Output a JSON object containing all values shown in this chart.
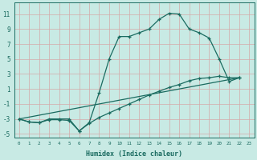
{
  "xlabel": "Humidex (Indice chaleur)",
  "xlim": [
    -0.5,
    23.5
  ],
  "ylim": [
    -5.5,
    12.5
  ],
  "xticks": [
    0,
    1,
    2,
    3,
    4,
    5,
    6,
    7,
    8,
    9,
    10,
    11,
    12,
    13,
    14,
    15,
    16,
    17,
    18,
    19,
    20,
    21,
    22,
    23
  ],
  "yticks": [
    -5,
    -3,
    -1,
    1,
    3,
    5,
    7,
    9,
    11
  ],
  "bg_color": "#c8eae4",
  "grid_color": "#b0d4cc",
  "line_color": "#1a6b60",
  "line1_x": [
    0,
    1,
    2,
    3,
    4,
    5,
    6,
    7,
    8,
    9,
    10,
    11,
    12,
    13,
    14,
    15,
    16,
    17,
    18,
    19,
    20,
    21,
    22
  ],
  "line1_y": [
    -3,
    -3.4,
    -3.5,
    -3,
    -3,
    -3,
    -4.6,
    -3.5,
    0.5,
    5,
    8.0,
    8.0,
    8.5,
    9,
    10.3,
    11.1,
    11.0,
    9.0,
    8.5,
    7.8,
    5.0,
    2.0,
    2.5
  ],
  "line2_x": [
    0,
    22
  ],
  "line2_y": [
    -3,
    2.5
  ],
  "line3_x": [
    0,
    1,
    2,
    3,
    4,
    5,
    6,
    7,
    8,
    9,
    10,
    11,
    12,
    13,
    14,
    15,
    16,
    17,
    18,
    19,
    20,
    21,
    22
  ],
  "line3_y": [
    -3,
    -3.4,
    -3.5,
    -3.1,
    -3.1,
    -3.2,
    -4.6,
    -3.6,
    -2.8,
    -2.2,
    -1.6,
    -1.0,
    -0.4,
    0.2,
    0.7,
    1.2,
    1.6,
    2.1,
    2.4,
    2.5,
    2.7,
    2.5,
    2.5
  ]
}
